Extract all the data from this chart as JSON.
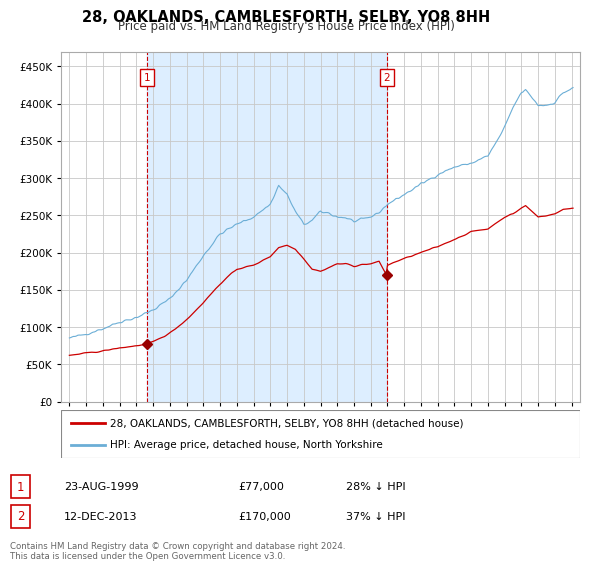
{
  "title": "28, OAKLANDS, CAMBLESFORTH, SELBY, YO8 8HH",
  "subtitle": "Price paid vs. HM Land Registry's House Price Index (HPI)",
  "legend_line1": "28, OAKLANDS, CAMBLESFORTH, SELBY, YO8 8HH (detached house)",
  "legend_line2": "HPI: Average price, detached house, North Yorkshire",
  "sale1_date": "23-AUG-1999",
  "sale1_price": "£77,000",
  "sale1_hpi": "28% ↓ HPI",
  "sale1_year": 1999.64,
  "sale1_value": 77000,
  "sale2_date": "12-DEC-2013",
  "sale2_price": "£170,000",
  "sale2_hpi": "37% ↓ HPI",
  "sale2_year": 2013.95,
  "sale2_value": 170000,
  "hpi_color": "#6baed6",
  "price_color": "#cc0000",
  "marker_color": "#990000",
  "annotation_box_color": "#cc0000",
  "background_color": "#ffffff",
  "plot_bg_color": "#ffffff",
  "shading_color": "#ddeeff",
  "grid_color": "#c8c8c8",
  "footer": "Contains HM Land Registry data © Crown copyright and database right 2024.\nThis data is licensed under the Open Government Licence v3.0.",
  "ylim": [
    0,
    470000
  ],
  "yticks": [
    0,
    50000,
    100000,
    150000,
    200000,
    250000,
    300000,
    350000,
    400000,
    450000
  ],
  "xlim_start": 1994.5,
  "xlim_end": 2025.5
}
